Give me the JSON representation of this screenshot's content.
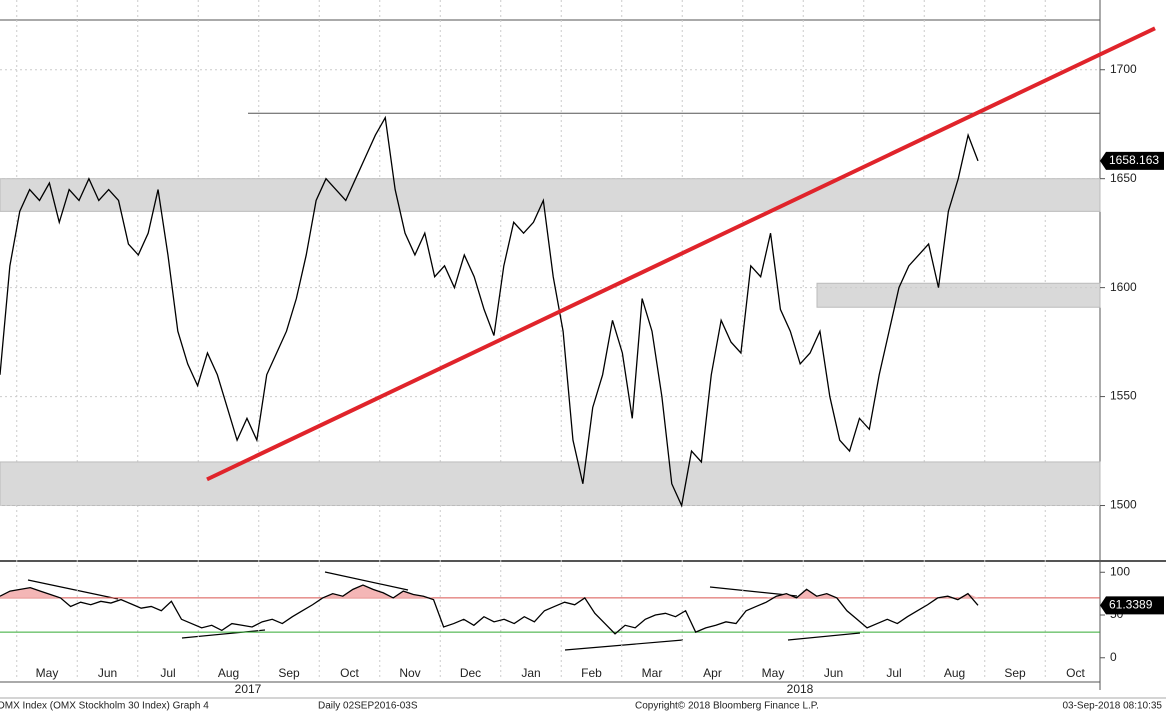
{
  "chart_data": [
    {
      "type": "line",
      "color": "#000000",
      "values": [
        1560,
        1610,
        1635,
        1645,
        1640,
        1648,
        1630,
        1645,
        1640,
        1650,
        1640,
        1645,
        1640,
        1620,
        1615,
        1625,
        1645,
        1615,
        1580,
        1565,
        1555,
        1570,
        1560,
        1545,
        1530,
        1540,
        1530,
        1560,
        1570,
        1580,
        1595,
        1615,
        1640,
        1650,
        1645,
        1640,
        1650,
        1660,
        1670,
        1678,
        1645,
        1625,
        1615,
        1625,
        1605,
        1610,
        1600,
        1615,
        1605,
        1590,
        1578,
        1610,
        1630,
        1625,
        1630,
        1640,
        1605,
        1580,
        1530,
        1510,
        1545,
        1560,
        1585,
        1570,
        1540,
        1595,
        1580,
        1550,
        1510,
        1500,
        1525,
        1520,
        1560,
        1585,
        1575,
        1570,
        1610,
        1605,
        1625,
        1590,
        1580,
        1565,
        1570,
        1580,
        1550,
        1530,
        1525,
        1540,
        1535,
        1560,
        1580,
        1600,
        1610,
        1615,
        1620,
        1600,
        1635,
        1650,
        1670,
        1658.163
      ],
      "ylim": [
        1475,
        1732
      ],
      "yticks": [
        1500,
        1550,
        1600,
        1650,
        1700
      ],
      "grid": true,
      "zones": [
        {
          "from": 1500,
          "to": 1520
        },
        {
          "from": 1635,
          "to": 1650
        },
        {
          "from": 1591,
          "to": 1602
        }
      ],
      "resistance": 1680,
      "trendline": {
        "from": 1512,
        "to": 1719
      },
      "trendline_color": "#e0242b",
      "x_labels": [
        "May",
        "Jun",
        "Jul",
        "Aug",
        "Sep",
        "Oct",
        "Nov",
        "Dec",
        "Jan",
        "Feb",
        "Mar",
        "Apr",
        "May",
        "Jun",
        "Jul",
        "Aug",
        "Sep",
        "Oct"
      ],
      "years": [
        "2017",
        "2018"
      ]
    },
    {
      "type": "line",
      "color": "#000000",
      "values": [
        72,
        78,
        80,
        82,
        78,
        74,
        70,
        60,
        65,
        62,
        66,
        64,
        68,
        63,
        58,
        60,
        55,
        66,
        45,
        40,
        35,
        38,
        32,
        40,
        38,
        36,
        42,
        45,
        40,
        48,
        55,
        62,
        70,
        75,
        72,
        80,
        85,
        80,
        76,
        70,
        78,
        74,
        72,
        68,
        36,
        40,
        45,
        38,
        48,
        42,
        45,
        40,
        48,
        42,
        55,
        60,
        65,
        62,
        70,
        52,
        40,
        28,
        38,
        35,
        45,
        50,
        52,
        48,
        55,
        30,
        35,
        38,
        42,
        40,
        55,
        60,
        65,
        72,
        75,
        70,
        80,
        72,
        75,
        70,
        55,
        45,
        35,
        40,
        45,
        40,
        48,
        55,
        62,
        70,
        72,
        68,
        75,
        61.3389
      ],
      "ylim": [
        -26,
        112
      ],
      "yticks": [
        0,
        50,
        100
      ],
      "reference_lines": [
        {
          "value": 70,
          "color": "#d9534f"
        },
        {
          "value": 30,
          "color": "#33aa33"
        }
      ]
    }
  ],
  "footer": {
    "left": "OMX Index (OMX Stockholm 30 Index) Graph 4",
    "middle": "Daily 02SEP2016-03S",
    "copyright": "Copyright© 2018 Bloomberg Finance L.P.",
    "time": "03-Sep-2018 08:10:35"
  }
}
